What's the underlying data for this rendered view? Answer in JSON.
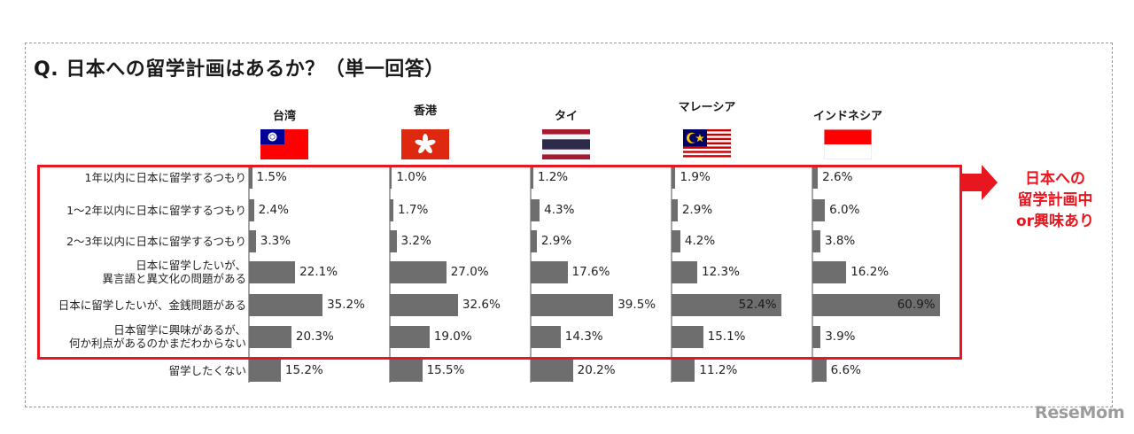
{
  "title": "Q. 日本への留学計画はあるか？（単一回答）",
  "callout": [
    "日本への",
    "留学計画中",
    "or興味あり"
  ],
  "logo_text": "ReseMom",
  "chart_data": {
    "type": "bar",
    "orientation": "horizontal",
    "title": "Q. 日本への留学計画はあるか？（単一回答）",
    "categories": [
      "1年以内に日本に留学するつもり",
      "1～2年以内に日本に留学するつもり",
      "2～3年以内に日本に留学するつもり",
      "日本に留学したいが、\n異言語と異文化の問題がある",
      "日本に留学したいが、金銭問題がある",
      "日本留学に興味があるが、\n何か利点があるのかまだわからない",
      "留学したくない"
    ],
    "series": [
      {
        "name": "台湾",
        "values": [
          1.5,
          2.4,
          3.3,
          22.1,
          35.2,
          20.3,
          15.2
        ],
        "labels": [
          "1.5%",
          "2.4%",
          "3.3%",
          "22.1%",
          "35.2%",
          "20.3%",
          "15.2%"
        ]
      },
      {
        "name": "香港",
        "values": [
          1.0,
          1.7,
          3.2,
          27.0,
          32.6,
          19.0,
          15.5
        ],
        "labels": [
          "1.0%",
          "1.7%",
          "3.2%",
          "27.0%",
          "32.6%",
          "19.0%",
          "15.5%"
        ]
      },
      {
        "name": "タイ",
        "values": [
          1.2,
          4.3,
          2.9,
          17.6,
          39.5,
          14.3,
          20.2
        ],
        "labels": [
          "1.2%",
          "4.3%",
          "2.9%",
          "17.6%",
          "39.5%",
          "14.3%",
          "20.2%"
        ]
      },
      {
        "name": "マレーシア",
        "values": [
          1.9,
          2.9,
          4.2,
          12.3,
          52.4,
          15.1,
          11.2
        ],
        "labels": [
          "1.9%",
          "2.9%",
          "4.2%",
          "12.3%",
          "52.4%",
          "15.1%",
          "11.2%"
        ]
      },
      {
        "name": "インドネシア",
        "values": [
          2.6,
          6.0,
          3.8,
          16.2,
          60.9,
          3.9,
          6.6
        ],
        "labels": [
          "2.6%",
          "6.0%",
          "3.8%",
          "16.2%",
          "60.9%",
          "3.9%",
          "6.6%"
        ]
      }
    ],
    "highlight_rows": [
      0,
      1,
      2,
      3,
      4,
      5
    ],
    "colors": {
      "bar": "#6e6e6e",
      "highlight": "#e8161e"
    },
    "grid": false,
    "legend": "flags-above-columns"
  }
}
